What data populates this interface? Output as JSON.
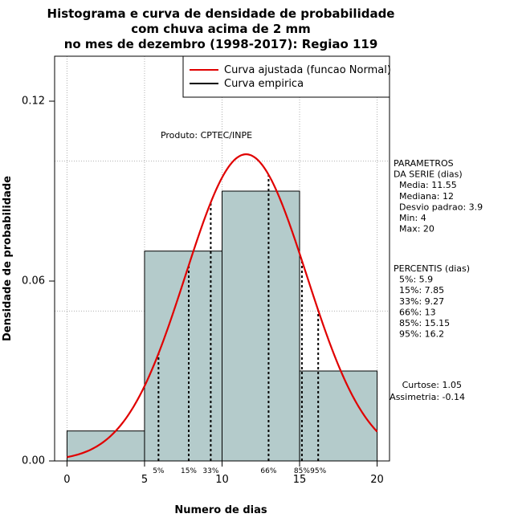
{
  "chart_data": {
    "type": "histogram",
    "title_lines": [
      "Histograma e curva de densidade de probabilidade",
      "com chuva acima de 2 mm",
      "no mes de dezembro (1998-2017): Regiao 119"
    ],
    "xlabel": "Numero de dias",
    "ylabel": "Densidade de probabilidade",
    "xlim": [
      -0.8,
      20.8
    ],
    "ylim": [
      0,
      0.135
    ],
    "x_ticks": [
      0,
      5,
      10,
      15,
      20
    ],
    "y_ticks": [
      0.0,
      0.06,
      0.12
    ],
    "y_tick_labels": [
      "0.00",
      "0.06",
      "0.12"
    ],
    "x_grid": [
      0,
      5,
      10,
      15,
      20
    ],
    "y_grid": [
      0,
      0.05,
      0.1
    ],
    "grid": true,
    "bars": [
      {
        "x0": 0,
        "x1": 5,
        "density": 0.01
      },
      {
        "x0": 5,
        "x1": 10,
        "density": 0.07
      },
      {
        "x0": 10,
        "x1": 15,
        "density": 0.09
      },
      {
        "x0": 15,
        "x1": 20,
        "density": 0.03
      }
    ],
    "bar_color": "#b4cbcb",
    "normal_curve": {
      "mean": 11.55,
      "sd": 3.9,
      "color": "#e00000",
      "x_range": [
        0,
        20
      ]
    },
    "percentiles": [
      {
        "label": "5%",
        "value": 5.9
      },
      {
        "label": "15%",
        "value": 7.85
      },
      {
        "label": "33%",
        "value": 9.27
      },
      {
        "label": "66%",
        "value": 13
      },
      {
        "label": "85%",
        "value": 15.15
      },
      {
        "label": "95%",
        "value": 16.2
      }
    ],
    "legend": {
      "position": "top-right",
      "entries": [
        {
          "label": "Curva ajustada (funcao Normal)",
          "color": "#e00000"
        },
        {
          "label": "Curva empirica",
          "color": "#000000"
        }
      ]
    },
    "annotation": "Produto: CPTEC/INPE",
    "side_panel": {
      "param_lines": [
        "PARAMETROS",
        "DA SERIE (dias)",
        "  Media: 11.55",
        "  Mediana: 12",
        "  Desvio padrao: 3.9",
        "  Min: 4",
        "  Max: 20"
      ],
      "pct_lines": [
        "PERCENTIS (dias)",
        "  5%: 5.9",
        "  15%: 7.85",
        "  33%: 9.27",
        "  66%: 13",
        "  85%: 15.15",
        "  95%: 16.2"
      ],
      "stats_lines": [
        "Curtose: 1.05",
        "Assimetria: -0.14"
      ]
    }
  }
}
